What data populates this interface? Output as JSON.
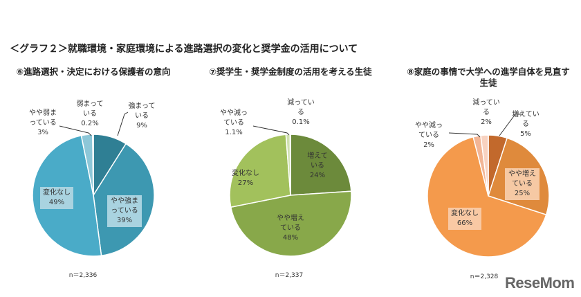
{
  "title": "＜グラフ２＞就職環境・家庭環境による進路選択の変化と奨学金の活用について",
  "logo": "ReseMom",
  "chart_data": [
    {
      "type": "pie",
      "title": "⑥進路選択・決定における保護者の意向",
      "n": "n＝2,336",
      "slices": [
        {
          "label": "強まっている",
          "value": 9,
          "display": "9%",
          "color": "#2f7f94"
        },
        {
          "label": "やや強まっている",
          "value": 39,
          "display": "39%",
          "color": "#3d98b1"
        },
        {
          "label": "変化なし",
          "value": 49,
          "display": "49%",
          "color": "#4aabc8"
        },
        {
          "label": "やや弱まっている",
          "value": 3,
          "display": "3%",
          "color": "#8dc7d8"
        },
        {
          "label": "弱まっている",
          "value": 0.2,
          "display": "0.2%",
          "color": "#bfe0ea"
        }
      ]
    },
    {
      "type": "pie",
      "title": "⑦奨学生・奨学金制度の活用を考える生徒",
      "n": "n＝2,337",
      "slices": [
        {
          "label": "増えている",
          "value": 24,
          "display": "24%",
          "color": "#6c8a3b"
        },
        {
          "label": "やや増えている",
          "value": 48,
          "display": "48%",
          "color": "#88a84a"
        },
        {
          "label": "変化なし",
          "value": 27,
          "display": "27%",
          "color": "#a2c15c"
        },
        {
          "label": "やや減っている",
          "value": 1.1,
          "display": "1.1%",
          "color": "#cfe0b0"
        },
        {
          "label": "減っている",
          "value": 0.1,
          "display": "0.1%",
          "color": "#e3eccf"
        }
      ]
    },
    {
      "type": "pie",
      "title": "⑧家庭の事情で大学への進学自体を見直す生徒",
      "n": "n＝2,328",
      "slices": [
        {
          "label": "増えている",
          "value": 5,
          "display": "5%",
          "color": "#c2692c"
        },
        {
          "label": "やや増えている",
          "value": 25,
          "display": "25%",
          "color": "#df8a3c"
        },
        {
          "label": "変化なし",
          "value": 66,
          "display": "66%",
          "color": "#f49a4c"
        },
        {
          "label": "やや減っている",
          "value": 2,
          "display": "2%",
          "color": "#f2b595"
        },
        {
          "label": "減っている",
          "value": 2,
          "display": "2%",
          "color": "#f8d2c0"
        }
      ]
    }
  ]
}
